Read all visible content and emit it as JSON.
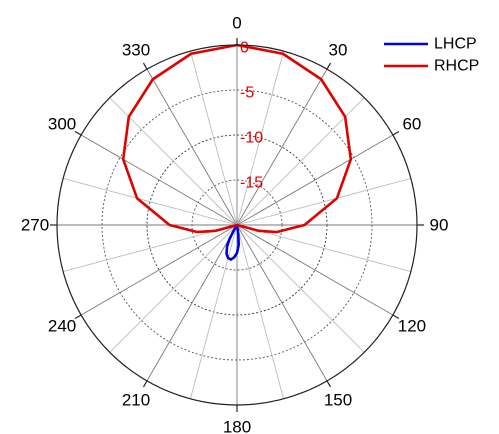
{
  "chart_data": {
    "type": "polar-line",
    "angle_unit": "deg",
    "angle_direction": "clockwise",
    "zero_at": "top",
    "angle_ticks": [
      0,
      30,
      60,
      90,
      120,
      150,
      180,
      210,
      240,
      270,
      300,
      330
    ],
    "angle_tick_labels": [
      "0",
      "30",
      "60",
      "90",
      "120",
      "150",
      "180",
      "210",
      "240",
      "270",
      "300",
      "330"
    ],
    "radial_range": [
      -20,
      0
    ],
    "radial_tick_labels": [
      {
        "value": 0,
        "label": "0"
      },
      {
        "value": -5,
        "label": "-5"
      },
      {
        "value": -10,
        "label": "-10"
      },
      {
        "value": -15,
        "label": "-15"
      }
    ],
    "legend_position": "top-right",
    "series": [
      {
        "name": "LHCP",
        "color": "#0000dd",
        "points": [
          [
            170,
            -20
          ],
          [
            172,
            -19.0
          ],
          [
            175,
            -17.8
          ],
          [
            180,
            -16.9
          ],
          [
            185,
            -16.4
          ],
          [
            190,
            -16.1
          ],
          [
            195,
            -16.2
          ],
          [
            200,
            -16.6
          ],
          [
            205,
            -17.4
          ],
          [
            208,
            -18.2
          ],
          [
            210,
            -19.2
          ],
          [
            211,
            -20
          ]
        ]
      },
      {
        "name": "RHCP",
        "color": "#e00000",
        "points": [
          [
            0,
            0
          ],
          [
            15,
            -0.3
          ],
          [
            30,
            -1.3
          ],
          [
            45,
            -3.0
          ],
          [
            60,
            -5.4
          ],
          [
            75,
            -8.5
          ],
          [
            90,
            -12.5
          ],
          [
            100,
            -15.5
          ],
          [
            105,
            -17.5
          ],
          [
            110,
            -20
          ],
          [
            250,
            -20
          ],
          [
            255,
            -17.5
          ],
          [
            260,
            -15.5
          ],
          [
            270,
            -12.5
          ],
          [
            285,
            -8.5
          ],
          [
            300,
            -5.4
          ],
          [
            315,
            -3.0
          ],
          [
            330,
            -1.3
          ],
          [
            345,
            -0.3
          ],
          [
            360,
            0
          ]
        ]
      }
    ]
  }
}
